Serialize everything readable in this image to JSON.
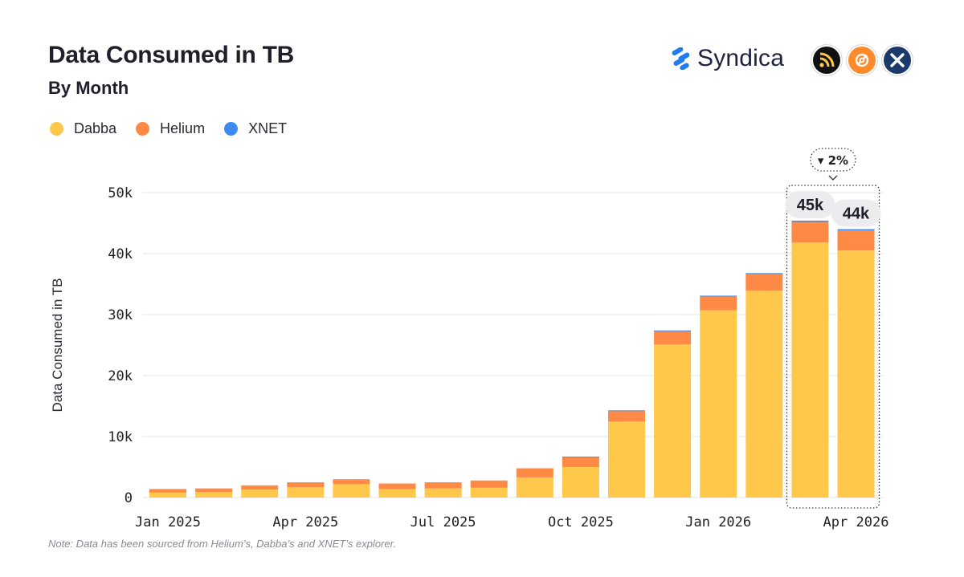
{
  "title": "Data Consumed in TB",
  "subtitle": "By Month",
  "brand": {
    "name": "Syndica",
    "icons": [
      "dabba-icon",
      "helium-icon",
      "xnet-icon"
    ]
  },
  "note": "Note: Data has been sourced from Helium’s, Dabba’s and XNET’s explorer.",
  "colors": {
    "dabba": "#FFC84A",
    "helium": "#FF8A45",
    "xnet": "#3D8BEF",
    "grid": "#e6e6ea"
  },
  "chart_data": {
    "type": "bar",
    "stacked": true,
    "title": "Data Consumed in TB",
    "subtitle": "By Month",
    "xlabel": "",
    "ylabel": "Data Consumed in TB",
    "ylim": [
      0,
      50000
    ],
    "yticks": [
      0,
      10000,
      20000,
      30000,
      40000,
      50000
    ],
    "ytick_labels": [
      "0",
      "10k",
      "20k",
      "30k",
      "40k",
      "50k"
    ],
    "grid": true,
    "legend_position": "top-left",
    "categories": [
      "Jan 2025",
      "Feb 2025",
      "Mar 2025",
      "Apr 2025",
      "May 2025",
      "Jun 2025",
      "Jul 2025",
      "Aug 2025",
      "Sep 2025",
      "Oct 2025",
      "Nov 2025",
      "Dec 2025",
      "Jan 2026",
      "Feb 2026",
      "Mar 2026",
      "Apr 2026"
    ],
    "xtick_labels": [
      "Jan 2025",
      "Apr 2025",
      "Jul 2025",
      "Oct 2025",
      "Jan 2026",
      "Apr 2026"
    ],
    "series": [
      {
        "name": "Dabba",
        "values": [
          800,
          900,
          1300,
          1700,
          2200,
          1400,
          1500,
          1600,
          3300,
          5000,
          12500,
          25100,
          30700,
          33900,
          41800,
          40500
        ]
      },
      {
        "name": "Helium",
        "values": [
          600,
          600,
          700,
          800,
          800,
          900,
          1000,
          1200,
          1500,
          1600,
          1700,
          2200,
          2300,
          2800,
          3400,
          3300
        ]
      },
      {
        "name": "XNET",
        "values": [
          0,
          0,
          0,
          0,
          0,
          0,
          0,
          0,
          0,
          100,
          100,
          100,
          100,
          100,
          200,
          200
        ]
      }
    ],
    "annotations": {
      "highlight_categories": [
        "Mar 2026",
        "Apr 2026"
      ],
      "change_label": "▾ 2%",
      "total_labels": [
        {
          "category": "Mar 2026",
          "text": "45k"
        },
        {
          "category": "Apr 2026",
          "text": "44k"
        }
      ]
    }
  }
}
